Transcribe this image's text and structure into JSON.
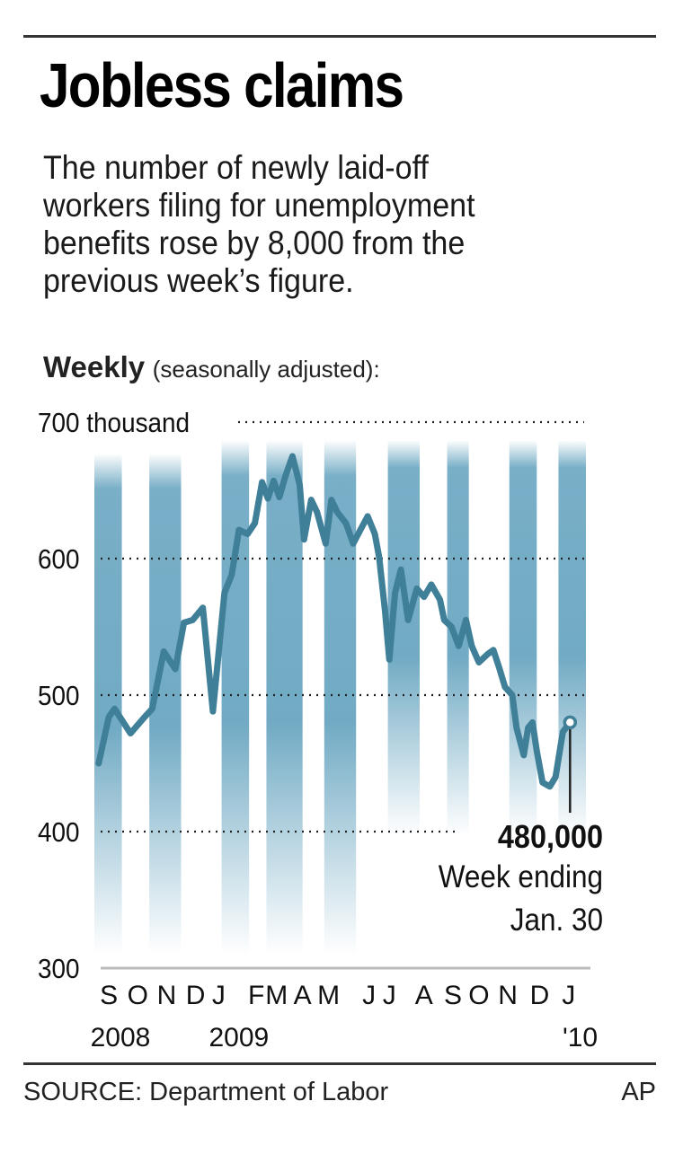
{
  "header": {
    "title": "Jobless claims",
    "subtitle_lines": [
      "The number of newly laid-off",
      "workers filing for unemployment",
      "benefits rose by 8,000 from the",
      "previous week’s figure."
    ]
  },
  "chart_label": {
    "bold": "Weekly",
    "normal": "(seasonally adjusted):"
  },
  "footer": {
    "source": "SOURCE: Department of Labor",
    "credit": "AP"
  },
  "colors": {
    "line": "#3f7f98",
    "band": "#6aa6c1",
    "grid": "#222222",
    "axis": "#bbbbbb",
    "text": "#111111"
  },
  "chart_data": {
    "type": "line",
    "title": "Weekly (seasonally adjusted)",
    "xlabel": "",
    "ylabel": "thousand",
    "ylim": [
      300,
      700
    ],
    "yticks": [
      {
        "value": 700,
        "label": "700 thousand"
      },
      {
        "value": 600,
        "label": "600"
      },
      {
        "value": 500,
        "label": "500"
      },
      {
        "value": 400,
        "label": "400"
      },
      {
        "value": 300,
        "label": "300"
      }
    ],
    "grid": true,
    "x_unit": "months since Sep 1, 2008",
    "xlim": [
      0,
      17
    ],
    "month_labels": [
      {
        "label": "S",
        "x": 0.5
      },
      {
        "label": "O",
        "x": 1.5
      },
      {
        "label": "N",
        "x": 2.5
      },
      {
        "label": "D",
        "x": 3.5
      },
      {
        "label": "J",
        "x": 4.3
      },
      {
        "label": "F",
        "x": 5.6
      },
      {
        "label": "M",
        "x": 6.3
      },
      {
        "label": "A",
        "x": 7.2
      },
      {
        "label": "M",
        "x": 8.1
      },
      {
        "label": "J",
        "x": 9.5
      },
      {
        "label": "J",
        "x": 10.2
      },
      {
        "label": "A",
        "x": 11.4
      },
      {
        "label": "S",
        "x": 12.4
      },
      {
        "label": "O",
        "x": 13.3
      },
      {
        "label": "N",
        "x": 14.3
      },
      {
        "label": "D",
        "x": 15.4
      },
      {
        "label": "J",
        "x": 16.4
      }
    ],
    "year_labels": [
      {
        "label": "2008",
        "x": 0.9
      },
      {
        "label": "2009",
        "x": 5.0
      },
      {
        "label": "'10",
        "x": 16.8
      }
    ],
    "bands": [
      {
        "from": 0.0,
        "to": 0.95,
        "fade_value": 300
      },
      {
        "from": 1.9,
        "to": 3.0,
        "fade_value": 300
      },
      {
        "from": 4.4,
        "to": 5.35,
        "fade_value": 300
      },
      {
        "from": 5.95,
        "to": 7.2,
        "fade_value": 300
      },
      {
        "from": 7.95,
        "to": 9.05,
        "fade_value": 300
      },
      {
        "from": 10.15,
        "to": 11.25,
        "fade_value": 400
      },
      {
        "from": 12.2,
        "to": 12.95,
        "fade_value": 400
      },
      {
        "from": 14.35,
        "to": 15.3,
        "fade_value": 400
      },
      {
        "from": 16.05,
        "to": 17.0,
        "fade_value": 400
      }
    ],
    "series": [
      {
        "name": "Weekly jobless claims (thousands)",
        "x": [
          0.15,
          0.5,
          0.7,
          1.25,
          1.7,
          2.0,
          2.4,
          2.8,
          3.1,
          3.4,
          3.75,
          4.1,
          4.5,
          4.75,
          5.0,
          5.3,
          5.55,
          5.8,
          6.0,
          6.2,
          6.4,
          6.6,
          6.85,
          7.1,
          7.25,
          7.5,
          7.7,
          8.0,
          8.2,
          8.4,
          8.7,
          8.95,
          9.2,
          9.45,
          9.7,
          9.85,
          10.05,
          10.2,
          10.4,
          10.6,
          10.85,
          11.15,
          11.4,
          11.65,
          11.95,
          12.1,
          12.35,
          12.6,
          12.85,
          13.05,
          13.3,
          13.6,
          13.8,
          14.0,
          14.2,
          14.45,
          14.6,
          14.85,
          15.0,
          15.15,
          15.3,
          15.5,
          15.75,
          15.95,
          16.2,
          16.45
        ],
        "values": [
          450,
          484,
          490,
          472,
          483,
          490,
          532,
          519,
          553,
          555,
          564,
          488,
          575,
          588,
          621,
          618,
          626,
          656,
          644,
          657,
          645,
          660,
          675,
          654,
          614,
          643,
          634,
          611,
          643,
          634,
          626,
          611,
          621,
          631,
          618,
          601,
          562,
          526,
          575,
          592,
          555,
          578,
          572,
          581,
          570,
          555,
          550,
          536,
          555,
          536,
          524,
          530,
          533,
          520,
          506,
          500,
          476,
          456,
          476,
          480,
          459,
          436,
          433,
          440,
          473,
          480
        ]
      }
    ],
    "annotation": {
      "value": "480,000",
      "line1": "Week ending",
      "line2": "Jan. 30",
      "point_x": 16.45,
      "point_value": 480
    }
  }
}
